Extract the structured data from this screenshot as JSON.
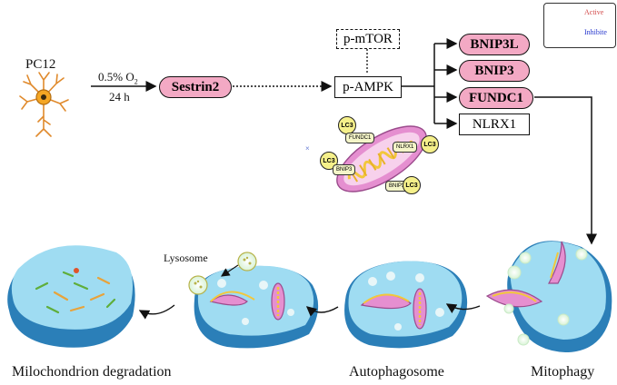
{
  "legend": {
    "active": "Active",
    "inhibit": "Inhibite",
    "active_color": "#d34b4b",
    "inhibit_color": "#2233cc"
  },
  "cell": {
    "name": "PC12"
  },
  "condition": {
    "oxygen": "0.5% O",
    "oxygen_sub": "2",
    "time": "24 h"
  },
  "nodes": {
    "sestrin": "Sestrin2",
    "mtor": "p-mTOR",
    "ampk": "p-AMPK",
    "bnip3l": "BNIP3L",
    "bnip3": "BNIP3",
    "fundc1": "FUNDC1",
    "nlrx1": "NLRX1"
  },
  "receptor_tags": {
    "lc3": "LC3",
    "fundc1": "FUNDC1",
    "nlrx1": "NLRX1",
    "bnip3": "BNIP3",
    "bnip3l": "BNIP3L"
  },
  "stages": {
    "lysosome": "Lysosome",
    "degradation": "Milochondrion degradation",
    "autophagosome": "Autophagosome",
    "mitophagy": "Mitophagy"
  },
  "colors": {
    "pill": "#f3a9c4",
    "cell_fill": "#8fd3ee",
    "cell_edge": "#2b7fb8",
    "mito": "#e58fd0",
    "mito_inner": "#f2c73c"
  }
}
